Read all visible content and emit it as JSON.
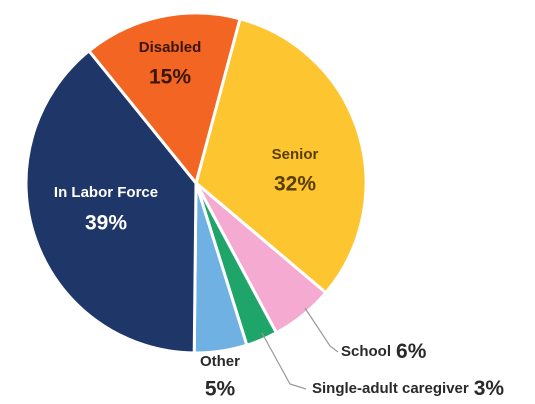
{
  "chart_data": {
    "type": "pie",
    "categories": [
      "Senior",
      "School",
      "Single-adult caregiver",
      "Other",
      "In Labor Force",
      "Disabled"
    ],
    "values": [
      32,
      6,
      3,
      5,
      39,
      15
    ],
    "value_labels": [
      "32%",
      "6%",
      "3%",
      "5%",
      "39%",
      "15%"
    ],
    "colors": [
      "#fdc52f",
      "#f5aad2",
      "#1fa56a",
      "#6fb1e3",
      "#1f3668",
      "#f26522"
    ]
  }
}
